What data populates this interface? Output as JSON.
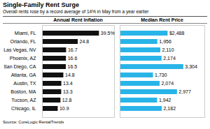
{
  "title": "Single-Family Rent Surge",
  "subtitle": "Overall rents rose by a record average of 14% in May from a year earlier",
  "annotations": [
    "Source: CoreLogic RentalTrends"
  ],
  "chart_data": [
    {
      "type": "bar",
      "orientation": "horizontal",
      "title": "Annual Rent Inflation",
      "categories": [
        "Miami, FL",
        "Orlando, FL",
        "Las Vegas, NV",
        "Phoenix, AZ",
        "San Diego, CA",
        "Atlanta, GA",
        "Austin, TX",
        "Boston, MA",
        "Tucson, AZ",
        "Chicago, IL"
      ],
      "values": [
        39.5,
        24.8,
        16.7,
        16.6,
        16.5,
        14.8,
        13.4,
        13.3,
        12.8,
        10.9
      ],
      "value_labels": [
        "39.5%",
        "24.8",
        "16.7",
        "16.6",
        "16.5",
        "14.8",
        "13.4",
        "13.3",
        "12.8",
        "10.9"
      ],
      "color": "#111111",
      "xlim": [
        0,
        50
      ],
      "data_labels": true,
      "tick_labels": "y",
      "grid": false
    },
    {
      "type": "bar",
      "orientation": "horizontal",
      "title": "Median Rent Price",
      "categories": [
        "Miami, FL",
        "Orlando, FL",
        "Las Vegas, NV",
        "Phoenix, AZ",
        "San Diego, CA",
        "Atlanta, GA",
        "Austin, TX",
        "Boston, MA",
        "Tucson, AZ",
        "Chicago, IL"
      ],
      "values": [
        2488,
        1956,
        2110,
        2174,
        3304,
        1730,
        2074,
        2977,
        1942,
        2182
      ],
      "value_labels": [
        "$2,488",
        "1,956",
        "2,110",
        "2,174",
        "3,304",
        "1,730",
        "2,074",
        "2,977",
        "1,942",
        "2,182"
      ],
      "color": "#29b4e8",
      "xlim": [
        0,
        4400
      ],
      "data_labels": true,
      "tick_labels": false,
      "grid": false
    }
  ]
}
